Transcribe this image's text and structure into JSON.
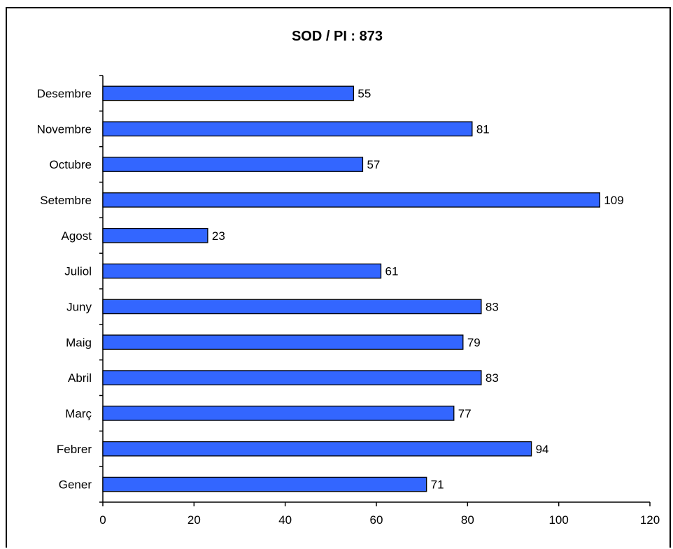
{
  "chart_data": {
    "type": "bar",
    "orientation": "horizontal",
    "title": "SOD / PI : 873",
    "categories": [
      "Gener",
      "Febrer",
      "Març",
      "Abril",
      "Maig",
      "Juny",
      "Juliol",
      "Agost",
      "Setembre",
      "Octubre",
      "Novembre",
      "Desembre"
    ],
    "values": [
      71,
      94,
      77,
      83,
      79,
      83,
      61,
      23,
      109,
      57,
      81,
      55
    ],
    "xlim": [
      0,
      120
    ],
    "x_ticks": [
      0,
      20,
      40,
      60,
      80,
      100,
      120
    ],
    "xlabel": "",
    "ylabel": "",
    "grid": false,
    "legend": "none",
    "bar_color": "#3366ff",
    "bar_edge_color": "#000000",
    "data_labels": true
  }
}
